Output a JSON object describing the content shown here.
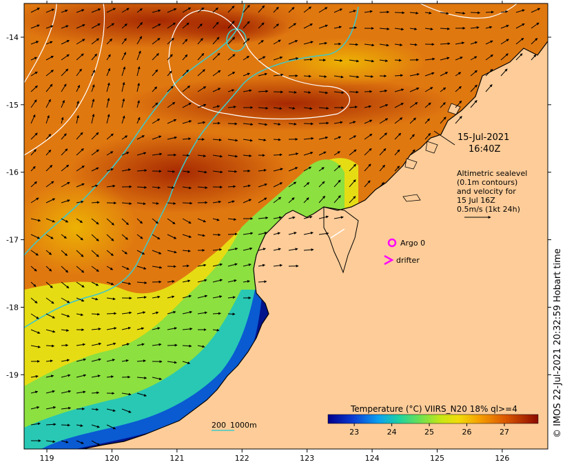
{
  "map": {
    "lon_ticks": [
      "119",
      "120",
      "121",
      "122",
      "123",
      "124",
      "125",
      "126"
    ],
    "lat_ticks": [
      "-14",
      "-15",
      "-16",
      "-17",
      "-18",
      "-19"
    ],
    "extent": {
      "lon": [
        118.65,
        126.7
      ],
      "lat": [
        -20.1,
        -13.5
      ]
    }
  },
  "annotations": {
    "date": "15-Jul-2021",
    "time": "16:40Z",
    "sealevel_lines": [
      "Altimetric sealevel",
      "(0.1m contours)",
      "and velocity for",
      "15 Jul 16Z",
      "0.5m/s (1kt 24h)"
    ],
    "argo_label": "Argo 0",
    "drifter_label": "drifter",
    "depth_label_200": "200",
    "depth_label_1000": "1000m"
  },
  "legend": {
    "title": "Temperature (°C) VIIRS_N20 18% ql>=4",
    "ticks": [
      "23",
      "24",
      "25",
      "26",
      "27"
    ],
    "range": [
      22.3,
      27.9
    ]
  },
  "credit": "© IMOS 22-Jul-2021 20:32:59 Hobart time",
  "colors": {
    "land": "#fdcc98",
    "contour_200m": "#40c8c8",
    "sealevel_contour": "#ffffff",
    "argo": "#ff00ff",
    "drifter": "#ff00ff"
  }
}
